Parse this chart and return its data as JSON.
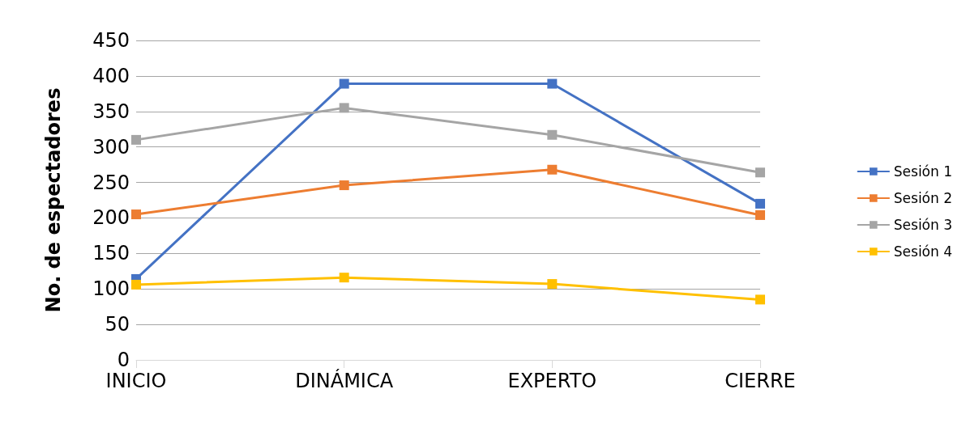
{
  "chart_data": {
    "type": "line",
    "ylabel": "No. de espectadores",
    "categories": [
      "INICIO",
      "DINÁMICA",
      "EXPERTO",
      "CIERRE"
    ],
    "series": [
      {
        "name": "Sesión 1",
        "color": "#4472c4",
        "values": [
          114,
          389,
          389,
          220
        ]
      },
      {
        "name": "Sesión 2",
        "color": "#ed7d31",
        "values": [
          205,
          246,
          268,
          204
        ]
      },
      {
        "name": "Sesión 3",
        "color": "#a5a5a5",
        "values": [
          310,
          355,
          317,
          264
        ]
      },
      {
        "name": "Sesión 4",
        "color": "#ffc000",
        "values": [
          106,
          116,
          107,
          85
        ]
      }
    ],
    "ylim": [
      0,
      450
    ],
    "yticks": [
      0,
      50,
      100,
      150,
      200,
      250,
      300,
      350,
      400,
      450
    ],
    "grid": "y",
    "legend": "right",
    "marker": "square"
  }
}
